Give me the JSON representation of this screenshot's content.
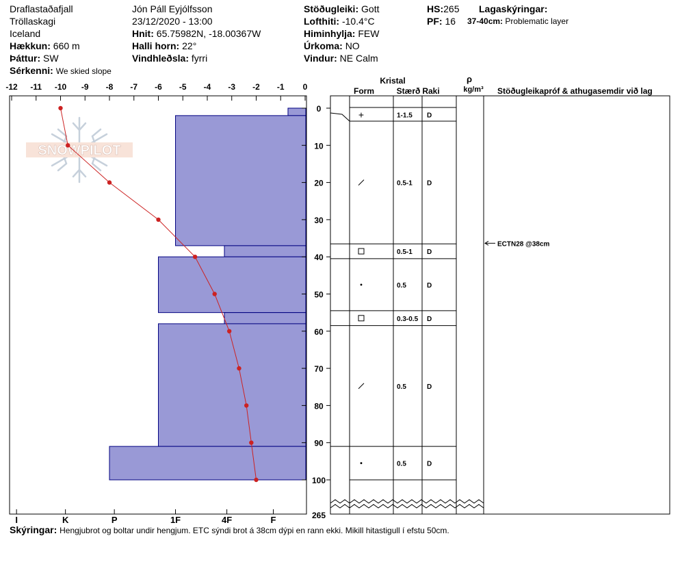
{
  "header": {
    "location": "Draflastaðafjall",
    "region": "Tröllaskagi",
    "country": "Iceland",
    "elevation_label": "Hækkun:",
    "elevation_value": "660 m",
    "aspect_label": "Þáttur:",
    "aspect_value": "SW",
    "features_label": "Sérkenni:",
    "features_value": "We skied slope",
    "observer": "Jón Páll  Eyjólfsson",
    "datetime": "23/12/2020 - 13:00",
    "coords_label": "Hnit:",
    "coords_value": "65.75982N, -18.00367W",
    "slope_label": "Halli horn:",
    "slope_value": "22°",
    "wind_loading_label": "Vindhleðsla:",
    "wind_loading_value": "fyrri",
    "stability_label": "Stöðugleiki:",
    "stability_value": "Gott",
    "air_temp_label": "Lofthiti:",
    "air_temp_value": "-10.4°C",
    "sky_label": "Himinhylja:",
    "sky_value": "FEW",
    "precip_label": "Úrkoma:",
    "precip_value": "NO",
    "wind_label": "Vindur:",
    "wind_value": "NE Calm",
    "hs_label": "HS:",
    "hs_value": "265",
    "pf_label": "PF:",
    "pf_value": "16",
    "layers_label": "Lagaskýringar:",
    "problem_range": "37-40cm:",
    "problem_text": "Problematic layer"
  },
  "columns": {
    "kristal": "Kristal",
    "form": "Form",
    "size": "Stærð",
    "moisture": "Raki",
    "rho": "ρ",
    "density_unit": "kg/m³",
    "tests_header": "Stöðugleikapróf & athugasemdir við lag"
  },
  "watermark": {
    "text": "SNOWPILOT"
  },
  "footer": {
    "label": "Skýringar:",
    "text": "Hengjubrot og boltar undir hengjum. ETC sýndi brot á 38cm dýpi en rann ekki. Mikill hitastigull í efstu 50cm."
  },
  "chart_data": {
    "type": "snow-profile",
    "temperature_axis": {
      "range": [
        -12,
        0
      ],
      "ticks": [
        -12,
        -11,
        -10,
        -9,
        -8,
        -7,
        -6,
        -5,
        -4,
        -3,
        -2,
        -1,
        0
      ],
      "tick_labels": [
        "-12",
        "-11",
        "-10",
        "-9",
        "-8",
        "-7",
        "-6",
        "-5",
        "-4",
        "-3",
        "-2",
        "-1",
        "0"
      ]
    },
    "hardness_axis": {
      "labels": [
        "I",
        "K",
        "P",
        "1F",
        "4F",
        "F"
      ],
      "positions": [
        -11.8,
        -9.8,
        -7.8,
        -5.3,
        -3.2,
        -1.3
      ]
    },
    "depth_axis": {
      "range": [
        0,
        100
      ],
      "ticks": [
        0,
        10,
        20,
        30,
        40,
        50,
        60,
        70,
        80,
        90,
        100
      ],
      "tick_labels": [
        "0",
        "10",
        "20",
        "30",
        "40",
        "50",
        "60",
        "70",
        "80",
        "90",
        "100"
      ],
      "total_depth_label": "265"
    },
    "hardness_profile": [
      {
        "top": 0,
        "bottom": 2,
        "value": -0.7
      },
      {
        "top": 2,
        "bottom": 37,
        "value": -5.3
      },
      {
        "top": 37,
        "bottom": 40,
        "value": -3.3
      },
      {
        "top": 40,
        "bottom": 55,
        "value": -6.0
      },
      {
        "top": 55,
        "bottom": 58,
        "value": -3.3
      },
      {
        "top": 58,
        "bottom": 91,
        "value": -6.0
      },
      {
        "top": 91,
        "bottom": 100,
        "value": -8.0
      }
    ],
    "temperature_profile": {
      "depth": [
        0,
        10,
        20,
        30,
        40,
        50,
        60,
        70,
        80,
        90,
        100
      ],
      "temp": [
        -10.0,
        -9.7,
        -8.0,
        -6.0,
        -4.5,
        -3.7,
        -3.1,
        -2.7,
        -2.4,
        -2.2,
        -2.0
      ]
    },
    "layers": [
      {
        "top": 0,
        "bottom": 3.5,
        "form": "+",
        "size": "1-1.5",
        "moisture": "D"
      },
      {
        "top": 3.5,
        "bottom": 36.5,
        "form": "/",
        "size": "0.5-1",
        "moisture": "D"
      },
      {
        "top": 36.5,
        "bottom": 40.5,
        "form": "□",
        "size": "0.5-1",
        "moisture": "D"
      },
      {
        "top": 40.5,
        "bottom": 54.5,
        "form": "•",
        "size": "0.5",
        "moisture": "D"
      },
      {
        "top": 54.5,
        "bottom": 58.5,
        "form": "□",
        "size": "0.3-0.5",
        "moisture": "D"
      },
      {
        "top": 58.5,
        "bottom": 91,
        "form": "/",
        "size": "0.5",
        "moisture": "D"
      },
      {
        "top": 91,
        "bottom": 100,
        "form": "•",
        "size": "0.5",
        "moisture": "D"
      }
    ],
    "tests": [
      {
        "depth": 38,
        "label": "ECTN28 @38cm"
      }
    ],
    "colors": {
      "hardness_fill": "#9999d6",
      "hardness_stroke": "#000080",
      "temperature": "#cc2222"
    }
  }
}
